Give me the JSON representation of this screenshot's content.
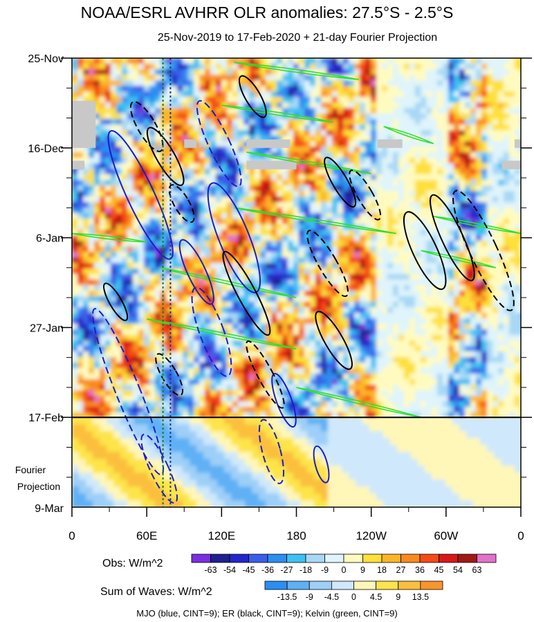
{
  "chart_data": {
    "type": "heatmap",
    "title": "NOAA/ESRL AVHRR OLR anomalies: 27.5°S - 2.5°S",
    "subtitle": "25-Nov-2019 to 17-Feb-2020 + 21-day Fourier Projection",
    "y_tick_labels": [
      "25-Nov",
      "16-Dec",
      "6-Jan",
      "27-Jan",
      "17-Feb"
    ],
    "y_projection_label_line1": "Fourier",
    "y_projection_label_line2": "Projection",
    "y_end_label": "9-Mar",
    "x_tick_labels": [
      "0",
      "60E",
      "120E",
      "180",
      "120W",
      "60W",
      "0"
    ],
    "x_range": [
      0,
      360
    ],
    "y_range_days": [
      0,
      105
    ],
    "obs_end_day": 84,
    "obs_legend": {
      "label": "Obs: W/m^2",
      "ticks": [
        "-63",
        "-54",
        "-45",
        "-36",
        "-27",
        "-18",
        "-9",
        "0",
        "9",
        "18",
        "27",
        "36",
        "45",
        "54",
        "63"
      ],
      "colors": [
        "#7a2fe0",
        "#20208f",
        "#2525c8",
        "#3a5ee8",
        "#2b8ef0",
        "#3ec0f2",
        "#a8d8f5",
        "#dff4fb",
        "#fffbc0",
        "#fde03a",
        "#fcb52a",
        "#f98a1f",
        "#f44a17",
        "#d81818",
        "#a01818",
        "#e271c9"
      ]
    },
    "waves_legend": {
      "label": "Sum of Waves: W/m^2",
      "ticks": [
        "-13.5",
        "-9",
        "-4.5",
        "0",
        "4.5",
        "9",
        "13.5"
      ],
      "colors": [
        "#2a8ef5",
        "#5fb0f5",
        "#9dcff8",
        "#cfe8fb",
        "#fff7b8",
        "#fde44a",
        "#fbbf3c",
        "#f9952a"
      ]
    },
    "waves_note": "MJO (blue, CINT=9); ER (black, CINT=9); Kelvin (green, CINT=9)",
    "mjo_contours": [
      {
        "lon": 55,
        "day": 32,
        "rx": 9,
        "ry": 30,
        "angle": -25,
        "dashed": false
      },
      {
        "lon": 45,
        "day": 78,
        "rx": 8,
        "ry": 38,
        "angle": -22,
        "dashed": true
      },
      {
        "lon": 118,
        "day": 20,
        "rx": 7,
        "ry": 20,
        "angle": -25,
        "dashed": true
      },
      {
        "lon": 130,
        "day": 42,
        "rx": 10,
        "ry": 25,
        "angle": -22,
        "dashed": false
      },
      {
        "lon": 112,
        "day": 64,
        "rx": 8,
        "ry": 20,
        "angle": -20,
        "dashed": true
      },
      {
        "lon": 160,
        "day": 92,
        "rx": 6,
        "ry": 14,
        "angle": -15,
        "dashed": true
      },
      {
        "lon": 200,
        "day": 95,
        "rx": 4,
        "ry": 8,
        "angle": -15,
        "dashed": false
      },
      {
        "lon": 100,
        "day": 50,
        "rx": 6,
        "ry": 15,
        "angle": -25,
        "dashed": false
      },
      {
        "lon": 170,
        "day": 80,
        "rx": 5,
        "ry": 12,
        "angle": -20,
        "dashed": false
      },
      {
        "lon": 70,
        "day": 96,
        "rx": 6,
        "ry": 16,
        "angle": -25,
        "dashed": true
      }
    ],
    "er_contours": [
      {
        "lon": 75,
        "day": 23,
        "rx": 6,
        "ry": 14,
        "angle": -30,
        "dashed": false
      },
      {
        "lon": 60,
        "day": 16,
        "rx": 6,
        "ry": 12,
        "angle": -30,
        "dashed": true
      },
      {
        "lon": 88,
        "day": 34,
        "rx": 5,
        "ry": 9,
        "angle": -30,
        "dashed": true
      },
      {
        "lon": 35,
        "day": 57,
        "rx": 4,
        "ry": 9,
        "angle": -30,
        "dashed": false
      },
      {
        "lon": 78,
        "day": 74,
        "rx": 5,
        "ry": 10,
        "angle": -30,
        "dashed": true
      },
      {
        "lon": 140,
        "day": 55,
        "rx": 6,
        "ry": 20,
        "angle": -28,
        "dashed": false
      },
      {
        "lon": 155,
        "day": 74,
        "rx": 5,
        "ry": 16,
        "angle": -28,
        "dashed": true
      },
      {
        "lon": 145,
        "day": 9,
        "rx": 5,
        "ry": 10,
        "angle": -30,
        "dashed": false
      },
      {
        "lon": 215,
        "day": 29,
        "rx": 5,
        "ry": 12,
        "angle": -30,
        "dashed": false
      },
      {
        "lon": 235,
        "day": 32,
        "rx": 5,
        "ry": 12,
        "angle": -30,
        "dashed": true
      },
      {
        "lon": 205,
        "day": 48,
        "rx": 6,
        "ry": 16,
        "angle": -30,
        "dashed": true
      },
      {
        "lon": 210,
        "day": 66,
        "rx": 6,
        "ry": 14,
        "angle": -30,
        "dashed": false
      },
      {
        "lon": 283,
        "day": 45,
        "rx": 8,
        "ry": 18,
        "angle": -25,
        "dashed": false
      },
      {
        "lon": 305,
        "day": 42,
        "rx": 7,
        "ry": 20,
        "angle": -25,
        "dashed": false
      },
      {
        "lon": 330,
        "day": 45,
        "rx": 9,
        "ry": 28,
        "angle": -25,
        "dashed": true
      }
    ],
    "kelvin_bands": [
      {
        "lon1": 130,
        "day1": 1,
        "lon2": 230,
        "day2": 5
      },
      {
        "lon1": 120,
        "day1": 11,
        "lon2": 210,
        "day2": 15
      },
      {
        "lon1": 250,
        "day1": 16,
        "lon2": 290,
        "day2": 20
      },
      {
        "lon1": 140,
        "day1": 22,
        "lon2": 240,
        "day2": 27
      },
      {
        "lon1": 130,
        "day1": 35,
        "lon2": 260,
        "day2": 41
      },
      {
        "lon1": 0,
        "day1": 41,
        "lon2": 60,
        "day2": 43
      },
      {
        "lon1": 290,
        "day1": 37,
        "lon2": 360,
        "day2": 41
      },
      {
        "lon1": 280,
        "day1": 45,
        "lon2": 340,
        "day2": 49
      },
      {
        "lon1": 70,
        "day1": 49,
        "lon2": 180,
        "day2": 56
      },
      {
        "lon1": 60,
        "day1": 61,
        "lon2": 180,
        "day2": 68
      },
      {
        "lon1": 180,
        "day1": 77,
        "lon2": 280,
        "day2": 84
      }
    ],
    "vertical_dotted_lon": [
      73,
      79
    ]
  }
}
